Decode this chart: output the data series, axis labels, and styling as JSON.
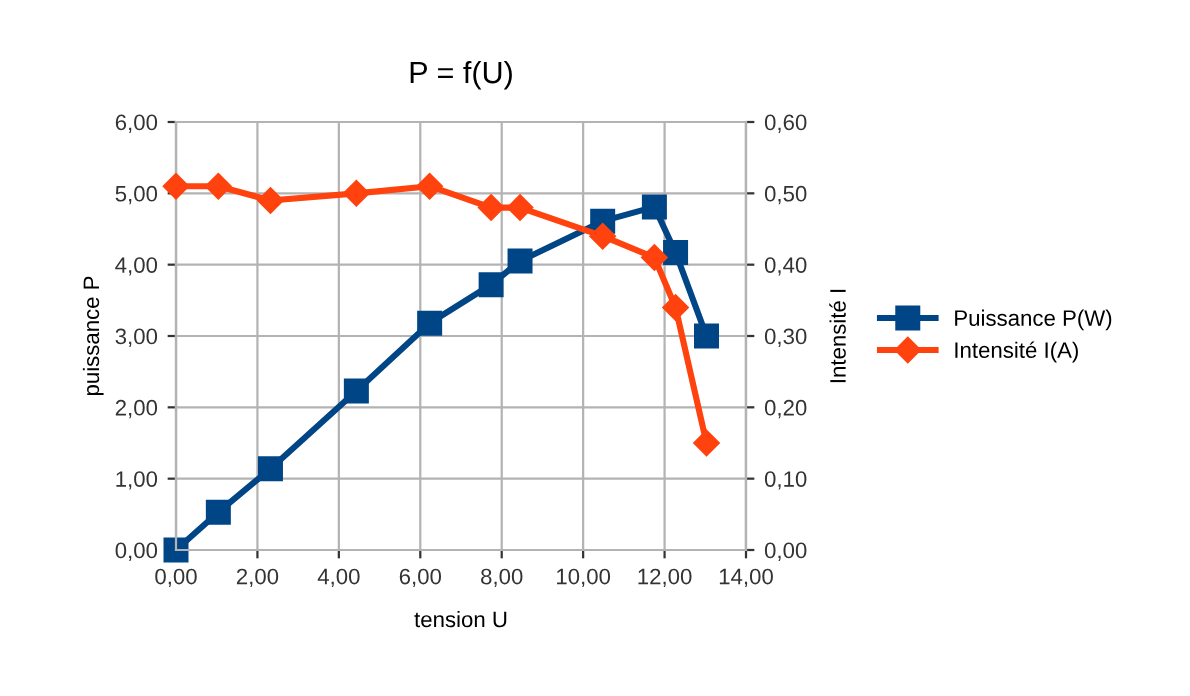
{
  "chart_data": {
    "type": "line",
    "title": "P = f(U)",
    "xlabel": "tension U",
    "ylabel": "puissance P",
    "y2label": "Intensité I",
    "x": [
      0,
      1.04,
      2.32,
      4.43,
      6.23,
      7.74,
      8.45,
      10.48,
      11.75,
      12.27,
      13.03
    ],
    "series": [
      {
        "name": "Puissance P(W)",
        "color": "#004586",
        "marker": "square",
        "values": [
          0,
          0.53,
          1.14,
          2.23,
          3.18,
          3.72,
          4.05,
          4.61,
          4.81,
          4.17,
          3.0
        ]
      },
      {
        "name": "Intensité I(A)",
        "color": "#ff420e",
        "marker": "diamond",
        "axis": "y2",
        "values": [
          0.51,
          0.51,
          0.49,
          0.5,
          0.51,
          0.48,
          0.48,
          0.44,
          0.41,
          0.34,
          0.15
        ]
      }
    ],
    "xlim": [
      0,
      14
    ],
    "xticks": [
      {
        "value": 0,
        "label": "0,00"
      },
      {
        "value": 2,
        "label": "2,00"
      },
      {
        "value": 4,
        "label": "4,00"
      },
      {
        "value": 6,
        "label": "6,00"
      },
      {
        "value": 8,
        "label": "8,00"
      },
      {
        "value": 10,
        "label": "10,00"
      },
      {
        "value": 12,
        "label": "12,00"
      },
      {
        "value": 14,
        "label": "14,00"
      }
    ],
    "ylim": [
      0,
      6
    ],
    "yticks": [
      {
        "value": 0,
        "label": "0,00"
      },
      {
        "value": 1,
        "label": "1,00"
      },
      {
        "value": 2,
        "label": "2,00"
      },
      {
        "value": 3,
        "label": "3,00"
      },
      {
        "value": 4,
        "label": "4,00"
      },
      {
        "value": 5,
        "label": "5,00"
      },
      {
        "value": 6,
        "label": "6,00"
      }
    ],
    "y2lim": [
      0,
      0.6
    ],
    "y2ticks": [
      {
        "value": 0,
        "label": "0,00"
      },
      {
        "value": 0.1,
        "label": "0,10"
      },
      {
        "value": 0.2,
        "label": "0,20"
      },
      {
        "value": 0.3,
        "label": "0,30"
      },
      {
        "value": 0.4,
        "label": "0,40"
      },
      {
        "value": 0.5,
        "label": "0,50"
      },
      {
        "value": 0.6,
        "label": "0,60"
      }
    ],
    "grid": true,
    "legend": "right",
    "line_style": "solid"
  }
}
